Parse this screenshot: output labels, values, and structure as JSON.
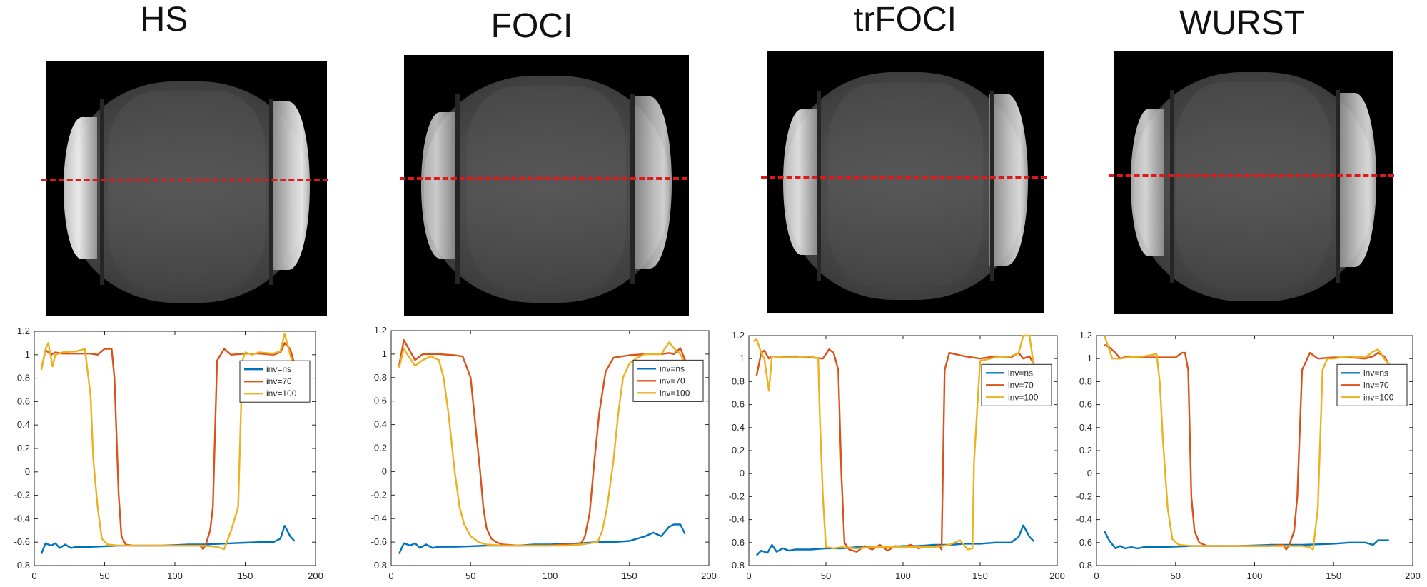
{
  "colors": {
    "ns": "#0072BD",
    "inv70": "#D95319",
    "inv100": "#EDB120",
    "dash": "#e01818"
  },
  "panels": [
    {
      "title": "HS"
    },
    {
      "title": "FOCI"
    },
    {
      "title": "trFOCI"
    },
    {
      "title": "WURST"
    }
  ],
  "chart_data": [
    {
      "type": "line",
      "title": "HS",
      "xlim": [
        0,
        200
      ],
      "ylim": [
        -0.8,
        1.2
      ],
      "xticks": [
        0,
        50,
        100,
        150,
        200
      ],
      "yticks": [
        -0.8,
        -0.6,
        -0.4,
        -0.2,
        0,
        0.2,
        0.4,
        0.6,
        0.8,
        1,
        1.2
      ],
      "ytick_labels": [
        "-0.8",
        "-0.6",
        "-0.4",
        "-0.2",
        "0",
        "0.2",
        "0.4",
        "0.6",
        "0.8",
        "1",
        "1.2"
      ],
      "legend": "right",
      "series": [
        {
          "name": "inv=ns",
          "key": "ns",
          "x": [
            5,
            8,
            12,
            15,
            18,
            22,
            26,
            30,
            40,
            50,
            60,
            70,
            80,
            90,
            100,
            110,
            120,
            130,
            140,
            150,
            160,
            170,
            175,
            178,
            182,
            185
          ],
          "y": [
            -0.7,
            -0.61,
            -0.63,
            -0.61,
            -0.65,
            -0.62,
            -0.65,
            -0.64,
            -0.64,
            -0.635,
            -0.63,
            -0.63,
            -0.63,
            -0.63,
            -0.625,
            -0.62,
            -0.62,
            -0.615,
            -0.61,
            -0.605,
            -0.6,
            -0.6,
            -0.57,
            -0.46,
            -0.55,
            -0.59
          ]
        },
        {
          "name": "inv=70",
          "key": "inv70",
          "x": [
            5,
            8,
            10,
            12,
            15,
            20,
            30,
            40,
            45,
            50,
            55,
            57,
            60,
            62,
            65,
            70,
            80,
            90,
            100,
            110,
            118,
            120,
            122,
            125,
            127,
            130,
            135,
            140,
            150,
            160,
            170,
            175,
            178,
            182,
            185
          ],
          "y": [
            0.88,
            1.04,
            1.02,
            1.0,
            1.02,
            1.01,
            1.01,
            1.01,
            1.0,
            1.05,
            1.05,
            0.8,
            -0.2,
            -0.55,
            -0.62,
            -0.63,
            -0.63,
            -0.63,
            -0.63,
            -0.63,
            -0.63,
            -0.66,
            -0.62,
            -0.5,
            -0.3,
            0.95,
            1.05,
            1.0,
            1.01,
            1.01,
            1.0,
            1.02,
            1.1,
            1.05,
            0.92
          ]
        },
        {
          "name": "inv=100",
          "key": "inv100",
          "x": [
            5,
            8,
            10,
            13,
            15,
            20,
            30,
            36,
            40,
            42,
            45,
            48,
            52,
            60,
            70,
            80,
            90,
            100,
            110,
            120,
            130,
            135,
            140,
            145,
            148,
            150,
            155,
            160,
            170,
            175,
            178,
            182,
            185
          ],
          "y": [
            0.87,
            1.05,
            1.1,
            0.9,
            1.0,
            1.02,
            1.03,
            1.05,
            0.65,
            0.1,
            -0.3,
            -0.57,
            -0.62,
            -0.63,
            -0.63,
            -0.63,
            -0.63,
            -0.63,
            -0.63,
            -0.63,
            -0.64,
            -0.66,
            -0.5,
            -0.3,
            0.95,
            1.02,
            1.0,
            1.02,
            1.01,
            1.03,
            1.18,
            1.0,
            0.88
          ]
        }
      ]
    },
    {
      "type": "line",
      "title": "FOCI",
      "xlim": [
        0,
        200
      ],
      "ylim": [
        -0.8,
        1.2
      ],
      "xticks": [
        0,
        50,
        100,
        150,
        200
      ],
      "yticks": [
        -0.8,
        -0.6,
        -0.4,
        -0.2,
        0,
        0.2,
        0.4,
        0.6,
        0.8,
        1,
        1.2
      ],
      "ytick_labels": [
        "-0.8",
        "-0.6",
        "-0.4",
        "-0.2",
        "0",
        "0.2",
        "0.4",
        "0.6",
        "0.8",
        "1",
        "1.2"
      ],
      "legend": "right",
      "series": [
        {
          "name": "inv=ns",
          "key": "ns",
          "x": [
            5,
            8,
            12,
            15,
            18,
            22,
            26,
            30,
            40,
            50,
            60,
            70,
            80,
            90,
            100,
            110,
            120,
            130,
            140,
            150,
            160,
            165,
            170,
            175,
            178,
            182,
            185
          ],
          "y": [
            -0.7,
            -0.61,
            -0.63,
            -0.61,
            -0.65,
            -0.62,
            -0.65,
            -0.64,
            -0.64,
            -0.635,
            -0.63,
            -0.63,
            -0.63,
            -0.62,
            -0.62,
            -0.615,
            -0.61,
            -0.6,
            -0.6,
            -0.59,
            -0.55,
            -0.52,
            -0.55,
            -0.47,
            -0.45,
            -0.45,
            -0.53
          ]
        },
        {
          "name": "inv=70",
          "key": "inv70",
          "x": [
            5,
            8,
            10,
            15,
            20,
            30,
            40,
            45,
            50,
            53,
            56,
            58,
            60,
            63,
            66,
            70,
            80,
            90,
            100,
            110,
            115,
            118,
            120,
            122,
            125,
            128,
            131,
            135,
            140,
            150,
            160,
            170,
            175,
            178,
            182,
            185
          ],
          "y": [
            0.9,
            1.12,
            1.07,
            0.95,
            1.0,
            1.0,
            0.99,
            0.98,
            0.8,
            0.4,
            0.0,
            -0.3,
            -0.48,
            -0.57,
            -0.6,
            -0.62,
            -0.63,
            -0.63,
            -0.63,
            -0.62,
            -0.62,
            -0.62,
            -0.6,
            -0.55,
            -0.35,
            0.1,
            0.5,
            0.85,
            0.97,
            0.99,
            1.0,
            1.0,
            1.01,
            1.0,
            1.05,
            0.95
          ]
        },
        {
          "name": "inv=100",
          "key": "inv100",
          "x": [
            5,
            8,
            10,
            15,
            20,
            25,
            30,
            33,
            36,
            40,
            43,
            46,
            50,
            55,
            60,
            70,
            80,
            90,
            100,
            110,
            120,
            130,
            133,
            136,
            140,
            143,
            146,
            150,
            155,
            160,
            170,
            175,
            178,
            182,
            185
          ],
          "y": [
            0.88,
            1.05,
            1.0,
            0.9,
            0.95,
            0.98,
            0.95,
            0.8,
            0.5,
            0.0,
            -0.3,
            -0.45,
            -0.55,
            -0.6,
            -0.62,
            -0.63,
            -0.63,
            -0.63,
            -0.63,
            -0.63,
            -0.62,
            -0.6,
            -0.5,
            -0.3,
            0.1,
            0.5,
            0.8,
            0.92,
            0.97,
            1.0,
            1.0,
            1.1,
            1.05,
            1.0,
            0.92
          ]
        }
      ]
    },
    {
      "type": "line",
      "title": "trFOCI",
      "xlim": [
        0,
        200
      ],
      "ylim": [
        -0.8,
        1.2
      ],
      "xticks": [
        0,
        50,
        100,
        150,
        200
      ],
      "yticks": [
        -0.8,
        -0.6,
        -0.4,
        -0.2,
        0,
        0.2,
        0.4,
        0.6,
        0.8,
        1,
        1.2
      ],
      "ytick_labels": [
        "-0.8",
        "-0.6",
        "-0.4",
        "-0.2",
        "0",
        "0.2",
        "0.4",
        "0.6",
        "0.8",
        "1",
        "1.2"
      ],
      "legend": "right",
      "series": [
        {
          "name": "inv=ns",
          "key": "ns",
          "x": [
            5,
            8,
            12,
            15,
            18,
            22,
            26,
            30,
            40,
            50,
            60,
            70,
            80,
            90,
            100,
            110,
            120,
            130,
            140,
            150,
            160,
            170,
            175,
            178,
            182,
            185
          ],
          "y": [
            -0.71,
            -0.67,
            -0.69,
            -0.62,
            -0.68,
            -0.65,
            -0.67,
            -0.66,
            -0.66,
            -0.65,
            -0.65,
            -0.64,
            -0.64,
            -0.64,
            -0.63,
            -0.63,
            -0.62,
            -0.62,
            -0.61,
            -0.61,
            -0.6,
            -0.6,
            -0.55,
            -0.45,
            -0.55,
            -0.59
          ]
        },
        {
          "name": "inv=70",
          "key": "inv70",
          "x": [
            5,
            8,
            10,
            13,
            15,
            20,
            30,
            40,
            48,
            52,
            55,
            58,
            60,
            62,
            65,
            70,
            75,
            80,
            85,
            90,
            95,
            100,
            105,
            110,
            115,
            120,
            123,
            125,
            127,
            130,
            140,
            150,
            160,
            170,
            175,
            178,
            182,
            185
          ],
          "y": [
            0.85,
            1.05,
            1.07,
            1.0,
            1.02,
            1.01,
            1.02,
            1.01,
            1.0,
            1.08,
            1.05,
            0.9,
            0.0,
            -0.6,
            -0.66,
            -0.68,
            -0.63,
            -0.66,
            -0.62,
            -0.67,
            -0.63,
            -0.64,
            -0.62,
            -0.65,
            -0.63,
            -0.64,
            -0.62,
            -0.66,
            0.9,
            1.05,
            1.02,
            1.0,
            1.02,
            1.01,
            1.05,
            1.0,
            1.02,
            0.95
          ]
        },
        {
          "name": "inv=100",
          "key": "inv100",
          "x": [
            3,
            5,
            8,
            10,
            13,
            15,
            20,
            30,
            40,
            45,
            46,
            48,
            50,
            55,
            60,
            70,
            80,
            90,
            100,
            110,
            120,
            130,
            137,
            140,
            142,
            145,
            146,
            150,
            160,
            170,
            175,
            178,
            182,
            185
          ],
          "y": [
            1.15,
            1.17,
            1.05,
            1.0,
            0.72,
            1.02,
            1.01,
            1.01,
            1.02,
            1.0,
            0.5,
            -0.2,
            -0.64,
            -0.65,
            -0.64,
            -0.65,
            -0.64,
            -0.64,
            -0.64,
            -0.64,
            -0.64,
            -0.62,
            -0.58,
            -0.63,
            -0.66,
            -0.65,
            0.1,
            0.98,
            1.01,
            1.02,
            1.05,
            1.2,
            1.2,
            0.92
          ]
        }
      ]
    },
    {
      "type": "line",
      "title": "WURST",
      "xlim": [
        0,
        200
      ],
      "ylim": [
        -0.8,
        1.2
      ],
      "xticks": [
        0,
        50,
        100,
        150,
        200
      ],
      "yticks": [
        -0.8,
        -0.6,
        -0.4,
        -0.2,
        0,
        0.2,
        0.4,
        0.6,
        0.8,
        1,
        1.2
      ],
      "ytick_labels": [
        "-0.8",
        "-0.6",
        "-0.4",
        "-0.2",
        "0",
        "0.2",
        "0.4",
        "0.6",
        "0.8",
        "1",
        "1.2"
      ],
      "legend": "right",
      "series": [
        {
          "name": "inv=ns",
          "key": "ns",
          "x": [
            5,
            8,
            12,
            15,
            18,
            22,
            26,
            30,
            40,
            50,
            60,
            70,
            80,
            90,
            100,
            110,
            120,
            130,
            140,
            150,
            160,
            170,
            175,
            178,
            182,
            185
          ],
          "y": [
            -0.5,
            -0.58,
            -0.65,
            -0.63,
            -0.65,
            -0.64,
            -0.65,
            -0.64,
            -0.64,
            -0.635,
            -0.63,
            -0.63,
            -0.63,
            -0.63,
            -0.625,
            -0.62,
            -0.62,
            -0.62,
            -0.615,
            -0.61,
            -0.6,
            -0.6,
            -0.62,
            -0.58,
            -0.58,
            -0.58
          ]
        },
        {
          "name": "inv=70",
          "key": "inv70",
          "x": [
            5,
            8,
            12,
            15,
            20,
            30,
            40,
            50,
            54,
            56,
            58,
            60,
            62,
            65,
            70,
            80,
            90,
            100,
            110,
            118,
            120,
            122,
            125,
            127,
            130,
            135,
            140,
            150,
            160,
            170,
            175,
            178,
            182,
            185
          ],
          "y": [
            1.12,
            1.1,
            1.05,
            1.0,
            1.02,
            1.01,
            1.01,
            1.01,
            1.05,
            1.05,
            0.9,
            -0.2,
            -0.5,
            -0.6,
            -0.63,
            -0.63,
            -0.63,
            -0.63,
            -0.63,
            -0.62,
            -0.66,
            -0.62,
            -0.5,
            -0.2,
            0.9,
            1.05,
            1.0,
            1.01,
            1.01,
            1.0,
            1.02,
            1.05,
            1.02,
            0.95
          ]
        },
        {
          "name": "inv=100",
          "key": "inv100",
          "x": [
            5,
            7,
            10,
            15,
            20,
            30,
            38,
            40,
            42,
            45,
            48,
            52,
            60,
            70,
            80,
            90,
            100,
            110,
            120,
            130,
            135,
            137,
            140,
            143,
            146,
            150,
            155,
            160,
            170,
            175,
            178,
            182,
            185
          ],
          "y": [
            1.2,
            1.12,
            1.0,
            1.0,
            1.01,
            1.02,
            1.04,
            0.8,
            0.3,
            -0.3,
            -0.57,
            -0.62,
            -0.63,
            -0.63,
            -0.63,
            -0.63,
            -0.63,
            -0.63,
            -0.63,
            -0.63,
            -0.64,
            -0.66,
            -0.3,
            0.9,
            1.0,
            1.0,
            1.01,
            1.02,
            1.01,
            1.06,
            1.08,
            1.0,
            0.95
          ]
        }
      ]
    }
  ]
}
